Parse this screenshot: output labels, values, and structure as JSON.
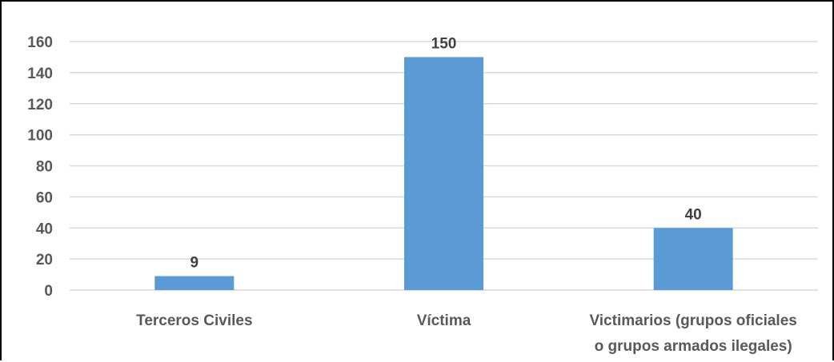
{
  "chart_data": {
    "type": "bar",
    "title": "",
    "xlabel": "",
    "ylabel": "",
    "categories": [
      [
        "Terceros Civiles"
      ],
      [
        "Víctima"
      ],
      [
        "Victimarios (grupos oficiales",
        "o grupos armados ilegales)"
      ]
    ],
    "values": [
      9,
      150,
      40
    ],
    "data_labels": [
      "9",
      "150",
      "40"
    ],
    "ylim": [
      0,
      160
    ],
    "yticks": [
      0,
      20,
      40,
      60,
      80,
      100,
      120,
      140,
      160
    ],
    "ytick_labels": [
      "0",
      "20",
      "40",
      "60",
      "80",
      "100",
      "120",
      "140",
      "160"
    ],
    "grid": true,
    "legend": "none",
    "bar_color": "#5B9BD5",
    "grid_color": "#D9D9D9"
  }
}
